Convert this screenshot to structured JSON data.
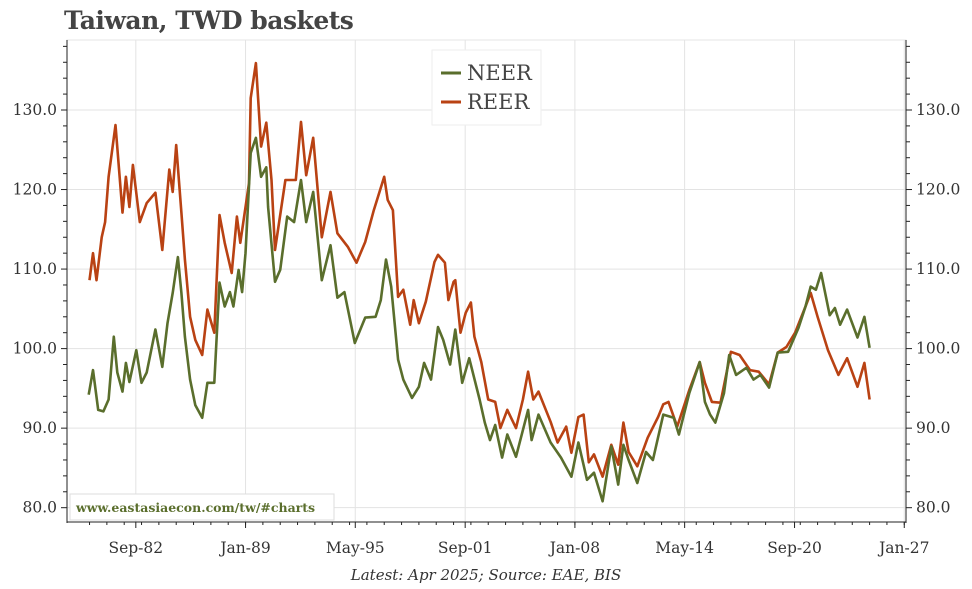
{
  "chart_data": {
    "type": "line",
    "title": "Taiwan, TWD baskets",
    "footer": "Latest: Apr 2025; Source: EAE, BIS",
    "watermark": "www.eastasiaecon.com/tw/#charts",
    "xlabel": "",
    "ylabel": "",
    "xlim": [
      1978.7,
      2027.1
    ],
    "ylim": [
      78.2,
      138.8
    ],
    "grid": true,
    "legend_position": "top-center",
    "x_ticks": [
      {
        "label": "Sep-82",
        "x": 1982.67
      },
      {
        "label": "Jan-89",
        "x": 1989.0
      },
      {
        "label": "May-95",
        "x": 1995.33
      },
      {
        "label": "Sep-01",
        "x": 2001.67
      },
      {
        "label": "Jan-08",
        "x": 2008.0
      },
      {
        "label": "May-14",
        "x": 2014.33
      },
      {
        "label": "Sep-20",
        "x": 2020.67
      },
      {
        "label": "Jan-27",
        "x": 2027.0
      }
    ],
    "y_ticks": [
      {
        "label": "80.0",
        "y": 80
      },
      {
        "label": "90.0",
        "y": 90
      },
      {
        "label": "100.0",
        "y": 100
      },
      {
        "label": "110.0",
        "y": 110
      },
      {
        "label": "120.0",
        "y": 120
      },
      {
        "label": "130.0",
        "y": 130
      }
    ],
    "series": [
      {
        "name": "NEER",
        "color": "#5a6e2c",
        "points": [
          [
            1979.95,
            94.2
          ],
          [
            1980.2,
            97.3
          ],
          [
            1980.5,
            92.3
          ],
          [
            1980.8,
            92.1
          ],
          [
            1981.1,
            93.6
          ],
          [
            1981.4,
            101.5
          ],
          [
            1981.6,
            97
          ],
          [
            1981.9,
            94.6
          ],
          [
            1982.1,
            98.2
          ],
          [
            1982.3,
            95.8
          ],
          [
            1982.7,
            99.8
          ],
          [
            1983.0,
            95.7
          ],
          [
            1983.3,
            97
          ],
          [
            1983.8,
            102.4
          ],
          [
            1984.2,
            97.7
          ],
          [
            1984.5,
            103.2
          ],
          [
            1984.8,
            107
          ],
          [
            1985.1,
            111.5
          ],
          [
            1985.3,
            107
          ],
          [
            1985.5,
            101.5
          ],
          [
            1985.8,
            96.1
          ],
          [
            1986.1,
            92.9
          ],
          [
            1986.5,
            91.3
          ],
          [
            1986.8,
            95.7
          ],
          [
            1987.2,
            95.7
          ],
          [
            1987.5,
            108.3
          ],
          [
            1987.8,
            105.3
          ],
          [
            1988.1,
            107.1
          ],
          [
            1988.3,
            105.3
          ],
          [
            1988.6,
            109.9
          ],
          [
            1988.8,
            107.1
          ],
          [
            1989.0,
            112
          ],
          [
            1989.3,
            124.6
          ],
          [
            1989.6,
            126.5
          ],
          [
            1989.9,
            121.6
          ],
          [
            1990.2,
            122.8
          ],
          [
            1990.3,
            117.8
          ],
          [
            1990.7,
            108.4
          ],
          [
            1991.0,
            109.9
          ],
          [
            1991.4,
            116.6
          ],
          [
            1991.8,
            115.9
          ],
          [
            1992.2,
            121.2
          ],
          [
            1992.5,
            115.9
          ],
          [
            1992.9,
            119.7
          ],
          [
            1993.4,
            108.6
          ],
          [
            1993.9,
            113
          ],
          [
            1994.3,
            106.4
          ],
          [
            1994.7,
            107.1
          ],
          [
            1995.3,
            100.7
          ],
          [
            1995.9,
            103.9
          ],
          [
            1996.5,
            104
          ],
          [
            1996.8,
            106.1
          ],
          [
            1997.1,
            111.2
          ],
          [
            1997.4,
            107.8
          ],
          [
            1997.8,
            98.6
          ],
          [
            1998.1,
            96.1
          ],
          [
            1998.6,
            93.8
          ],
          [
            1999.0,
            95.2
          ],
          [
            1999.3,
            98.2
          ],
          [
            1999.7,
            96.1
          ],
          [
            2000.1,
            102.7
          ],
          [
            2000.4,
            101.1
          ],
          [
            2000.8,
            98
          ],
          [
            2001.1,
            102.4
          ],
          [
            2001.5,
            95.7
          ],
          [
            2001.9,
            98.8
          ],
          [
            2002.5,
            93.6
          ],
          [
            2002.8,
            90.7
          ],
          [
            2003.1,
            88.5
          ],
          [
            2003.4,
            90.4
          ],
          [
            2003.8,
            86.3
          ],
          [
            2004.1,
            89.2
          ],
          [
            2004.6,
            86.4
          ],
          [
            2005.3,
            92.3
          ],
          [
            2005.5,
            88.5
          ],
          [
            2005.9,
            91.7
          ],
          [
            2006.6,
            88.2
          ],
          [
            2007.2,
            86.3
          ],
          [
            2007.8,
            83.9
          ],
          [
            2008.2,
            88.2
          ],
          [
            2008.7,
            83.5
          ],
          [
            2009.1,
            84.4
          ],
          [
            2009.6,
            80.8
          ],
          [
            2010.1,
            87.7
          ],
          [
            2010.5,
            82.9
          ],
          [
            2010.8,
            87.9
          ],
          [
            2011.1,
            86
          ],
          [
            2011.6,
            83.1
          ],
          [
            2012.1,
            87
          ],
          [
            2012.5,
            86
          ],
          [
            2013.1,
            91.7
          ],
          [
            2013.7,
            91.3
          ],
          [
            2014.0,
            89.2
          ],
          [
            2014.6,
            94.4
          ],
          [
            2015.2,
            98.3
          ],
          [
            2015.5,
            93.3
          ],
          [
            2015.8,
            91.7
          ],
          [
            2016.1,
            90.7
          ],
          [
            2016.6,
            94.4
          ],
          [
            2016.9,
            99.2
          ],
          [
            2017.3,
            96.7
          ],
          [
            2017.9,
            97.6
          ],
          [
            2018.3,
            96.1
          ],
          [
            2018.7,
            96.7
          ],
          [
            2019.2,
            95.1
          ],
          [
            2019.7,
            99.5
          ],
          [
            2020.3,
            99.6
          ],
          [
            2020.9,
            102.6
          ],
          [
            2021.3,
            105.3
          ],
          [
            2021.6,
            107.8
          ],
          [
            2021.9,
            107.4
          ],
          [
            2022.2,
            109.5
          ],
          [
            2022.7,
            104.2
          ],
          [
            2023.0,
            105.1
          ],
          [
            2023.3,
            103
          ],
          [
            2023.7,
            104.9
          ],
          [
            2024.3,
            101.4
          ],
          [
            2024.7,
            104
          ],
          [
            2025.0,
            100.1
          ]
        ]
      },
      {
        "name": "REER",
        "color": "#b94213",
        "points": [
          [
            1980.0,
            108.6
          ],
          [
            1980.2,
            112
          ],
          [
            1980.4,
            108.6
          ],
          [
            1980.7,
            114
          ],
          [
            1980.9,
            115.9
          ],
          [
            1981.1,
            121.6
          ],
          [
            1981.5,
            128.1
          ],
          [
            1981.9,
            117.1
          ],
          [
            1982.1,
            121.6
          ],
          [
            1982.3,
            117.8
          ],
          [
            1982.5,
            123.1
          ],
          [
            1982.9,
            115.9
          ],
          [
            1983.3,
            118.3
          ],
          [
            1983.8,
            119.6
          ],
          [
            1984.2,
            112.4
          ],
          [
            1984.6,
            122.5
          ],
          [
            1984.8,
            119.7
          ],
          [
            1985.0,
            125.6
          ],
          [
            1985.3,
            117.1
          ],
          [
            1985.5,
            111.2
          ],
          [
            1985.8,
            104
          ],
          [
            1986.1,
            101.1
          ],
          [
            1986.5,
            99.2
          ],
          [
            1986.8,
            104.9
          ],
          [
            1987.2,
            102
          ],
          [
            1987.5,
            116.8
          ],
          [
            1987.8,
            113.3
          ],
          [
            1988.2,
            109.5
          ],
          [
            1988.5,
            116.6
          ],
          [
            1988.7,
            113.3
          ],
          [
            1989.2,
            120.8
          ],
          [
            1989.3,
            131.5
          ],
          [
            1989.6,
            135.9
          ],
          [
            1989.9,
            125.4
          ],
          [
            1990.2,
            128.4
          ],
          [
            1990.5,
            121.2
          ],
          [
            1990.7,
            112.4
          ],
          [
            1991.3,
            121.2
          ],
          [
            1991.9,
            121.2
          ],
          [
            1992.2,
            128.5
          ],
          [
            1992.5,
            121.8
          ],
          [
            1992.9,
            126.5
          ],
          [
            1993.4,
            114
          ],
          [
            1993.9,
            119.7
          ],
          [
            1994.3,
            114.5
          ],
          [
            1994.9,
            112.8
          ],
          [
            1995.4,
            110.8
          ],
          [
            1995.9,
            113.4
          ],
          [
            1996.4,
            117.4
          ],
          [
            1997.0,
            121.6
          ],
          [
            1997.2,
            118.7
          ],
          [
            1997.5,
            117.4
          ],
          [
            1997.8,
            106.5
          ],
          [
            1998.1,
            107.4
          ],
          [
            1998.5,
            103
          ],
          [
            1998.7,
            106.1
          ],
          [
            1999.0,
            103.2
          ],
          [
            1999.4,
            105.9
          ],
          [
            1999.9,
            110.9
          ],
          [
            2000.1,
            111.8
          ],
          [
            2000.5,
            110.8
          ],
          [
            2000.7,
            106.1
          ],
          [
            2001.0,
            108.4
          ],
          [
            2001.1,
            108.6
          ],
          [
            2001.4,
            102
          ],
          [
            2001.7,
            104.5
          ],
          [
            2002.0,
            105.8
          ],
          [
            2002.2,
            101.5
          ],
          [
            2002.6,
            98.3
          ],
          [
            2003.0,
            93.6
          ],
          [
            2003.4,
            93.3
          ],
          [
            2003.7,
            90
          ],
          [
            2004.1,
            92.3
          ],
          [
            2004.6,
            90
          ],
          [
            2005.0,
            93.6
          ],
          [
            2005.3,
            97.1
          ],
          [
            2005.6,
            93.6
          ],
          [
            2005.9,
            94.6
          ],
          [
            2006.6,
            90.8
          ],
          [
            2007.0,
            88.2
          ],
          [
            2007.5,
            90.2
          ],
          [
            2007.8,
            86.9
          ],
          [
            2008.2,
            91.4
          ],
          [
            2008.5,
            91.7
          ],
          [
            2008.8,
            85.7
          ],
          [
            2009.1,
            86.7
          ],
          [
            2009.6,
            83.9
          ],
          [
            2010.1,
            87.9
          ],
          [
            2010.5,
            85.4
          ],
          [
            2010.8,
            90.7
          ],
          [
            2011.1,
            87
          ],
          [
            2011.6,
            85.2
          ],
          [
            2012.2,
            88.8
          ],
          [
            2012.8,
            91.4
          ],
          [
            2013.1,
            93
          ],
          [
            2013.4,
            93.3
          ],
          [
            2013.9,
            90.2
          ],
          [
            2014.6,
            94.8
          ],
          [
            2015.2,
            98.3
          ],
          [
            2015.5,
            95.7
          ],
          [
            2015.9,
            93.3
          ],
          [
            2016.4,
            93.2
          ],
          [
            2016.9,
            98.6
          ],
          [
            2017.0,
            99.6
          ],
          [
            2017.5,
            99.2
          ],
          [
            2018.1,
            97.3
          ],
          [
            2018.6,
            97.1
          ],
          [
            2019.2,
            95.5
          ],
          [
            2019.7,
            99.5
          ],
          [
            2020.2,
            100.2
          ],
          [
            2020.7,
            102
          ],
          [
            2021.3,
            105.3
          ],
          [
            2021.6,
            107
          ],
          [
            2022.0,
            104
          ],
          [
            2022.6,
            99.8
          ],
          [
            2023.2,
            96.7
          ],
          [
            2023.7,
            98.8
          ],
          [
            2024.3,
            95.2
          ],
          [
            2024.7,
            98.2
          ],
          [
            2025.0,
            93.6
          ]
        ]
      }
    ]
  }
}
